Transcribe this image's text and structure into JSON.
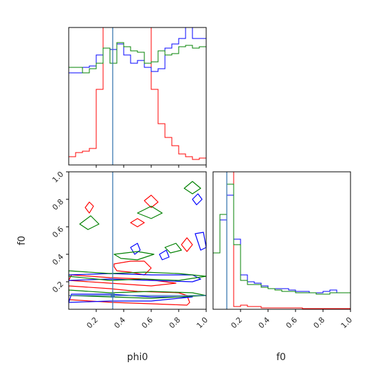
{
  "chart_data": {
    "type": "corner",
    "parameters": [
      "phi0",
      "f0"
    ],
    "truth": {
      "phi0": 0.32,
      "f0": 0.1
    },
    "colors": {
      "truth": "#3b78b0",
      "red": "#ff0000",
      "blue": "#0000ff",
      "green": "#008000"
    },
    "panels": [
      {
        "id": "hist-phi0",
        "type": "histogram",
        "xlim": [
          0,
          1
        ],
        "bin_edges": [
          0,
          0.05,
          0.1,
          0.15,
          0.2,
          0.25,
          0.3,
          0.35,
          0.4,
          0.45,
          0.5,
          0.55,
          0.6,
          0.65,
          0.7,
          0.75,
          0.8,
          0.85,
          0.9,
          0.95,
          1.0
        ],
        "series": [
          {
            "color": "red",
            "values": [
              0.06,
              0.09,
              0.1,
              0.12,
              0.55,
              1.1,
              1.1,
              1.1,
              1.1,
              1.1,
              1.1,
              1.1,
              0.55,
              0.3,
              0.2,
              0.14,
              0.08,
              0.06,
              0.04,
              0.05
            ]
          },
          {
            "color": "blue",
            "values": [
              0.67,
              0.67,
              0.71,
              0.72,
              0.8,
              0.85,
              0.84,
              0.88,
              0.8,
              0.74,
              0.76,
              0.71,
              0.68,
              0.7,
              0.85,
              0.88,
              0.92,
              1.1,
              0.92,
              0.92
            ]
          },
          {
            "color": "green",
            "values": [
              0.71,
              0.71,
              0.67,
              0.7,
              0.74,
              0.85,
              0.74,
              0.89,
              0.86,
              0.83,
              0.82,
              0.74,
              0.75,
              0.83,
              0.8,
              0.81,
              0.86,
              0.87,
              0.85,
              0.86
            ]
          }
        ]
      },
      {
        "id": "hist-f0",
        "type": "histogram",
        "xlim": [
          0,
          1
        ],
        "bin_edges": [
          0,
          0.05,
          0.1,
          0.15,
          0.2,
          0.25,
          0.3,
          0.35,
          0.4,
          0.45,
          0.5,
          0.55,
          0.6,
          0.65,
          0.7,
          0.75,
          0.8,
          0.85,
          0.9,
          0.95,
          1.0
        ],
        "series": [
          {
            "color": "red",
            "values": [
              0.0,
              0.0,
              1.1,
              0.02,
              0.03,
              0.02,
              0.02,
              0.01,
              0.01,
              0.01,
              0.01,
              0.01,
              0.01,
              0.005,
              0.005,
              0.005,
              0.005,
              0.005,
              0.005,
              0.005
            ]
          },
          {
            "color": "blue",
            "values": [
              0.41,
              0.65,
              0.83,
              0.51,
              0.25,
              0.2,
              0.19,
              0.17,
              0.15,
              0.15,
              0.15,
              0.14,
              0.13,
              0.13,
              0.12,
              0.12,
              0.13,
              0.14,
              0.12,
              0.12
            ]
          },
          {
            "color": "green",
            "values": [
              0.41,
              0.69,
              0.91,
              0.47,
              0.21,
              0.18,
              0.18,
              0.16,
              0.15,
              0.14,
              0.13,
              0.13,
              0.12,
              0.12,
              0.12,
              0.11,
              0.11,
              0.12,
              0.12,
              0.12
            ]
          }
        ]
      },
      {
        "id": "contour-phi0-f0",
        "type": "contour",
        "xlabel": "phi0",
        "ylabel": "f0",
        "xlim": [
          0,
          1
        ],
        "ylim": [
          0,
          1
        ],
        "xticks": [
          "0.2",
          "0.4",
          "0.6",
          "0.8",
          "1.0"
        ],
        "yticks": [
          "0.2",
          "0.4",
          "0.6",
          "0.8",
          "1.0"
        ],
        "contours": [
          {
            "color": "red",
            "points": [
              [
                0.0,
                0.17
              ],
              [
                0.3,
                0.15
              ],
              [
                0.5,
                0.13
              ],
              [
                0.8,
                0.12
              ],
              [
                0.86,
                0.1
              ],
              [
                0.88,
                0.05
              ],
              [
                0.86,
                0.03
              ],
              [
                0.6,
                0.04
              ],
              [
                0.32,
                0.05
              ],
              [
                0.0,
                0.07
              ]
            ]
          },
          {
            "color": "red",
            "points": [
              [
                0.33,
                0.33
              ],
              [
                0.45,
                0.35
              ],
              [
                0.55,
                0.35
              ],
              [
                0.6,
                0.3
              ],
              [
                0.55,
                0.25
              ],
              [
                0.45,
                0.27
              ],
              [
                0.35,
                0.28
              ],
              [
                0.33,
                0.31
              ]
            ]
          },
          {
            "color": "red",
            "points": [
              [
                0.12,
                0.74
              ],
              [
                0.15,
                0.78
              ],
              [
                0.18,
                0.75
              ],
              [
                0.15,
                0.7
              ]
            ]
          },
          {
            "color": "red",
            "points": [
              [
                0.45,
                0.63
              ],
              [
                0.5,
                0.66
              ],
              [
                0.55,
                0.63
              ],
              [
                0.5,
                0.6
              ]
            ]
          },
          {
            "color": "red",
            "points": [
              [
                0.55,
                0.79
              ],
              [
                0.6,
                0.83
              ],
              [
                0.65,
                0.78
              ],
              [
                0.6,
                0.74
              ]
            ]
          },
          {
            "color": "red",
            "points": [
              [
                0.82,
                0.47
              ],
              [
                0.86,
                0.52
              ],
              [
                0.9,
                0.47
              ],
              [
                0.86,
                0.42
              ]
            ]
          },
          {
            "color": "red",
            "points": [
              [
                0.02,
                0.25
              ],
              [
                0.3,
                0.23
              ],
              [
                0.55,
                0.22
              ],
              [
                0.78,
                0.19
              ],
              [
                0.6,
                0.17
              ],
              [
                0.3,
                0.19
              ],
              [
                0.0,
                0.21
              ]
            ]
          },
          {
            "color": "blue",
            "points": [
              [
                0.0,
                0.21
              ],
              [
                0.3,
                0.22
              ],
              [
                0.6,
                0.21
              ],
              [
                0.9,
                0.2
              ],
              [
                0.96,
                0.22
              ],
              [
                0.9,
                0.25
              ],
              [
                0.6,
                0.25
              ],
              [
                0.3,
                0.26
              ],
              [
                0.0,
                0.25
              ]
            ]
          },
          {
            "color": "blue",
            "points": [
              [
                0.02,
                0.11
              ],
              [
                0.3,
                0.11
              ],
              [
                0.6,
                0.09
              ],
              [
                0.9,
                0.09
              ],
              [
                0.6,
                0.06
              ],
              [
                0.3,
                0.06
              ],
              [
                0.0,
                0.05
              ]
            ]
          },
          {
            "color": "blue",
            "points": [
              [
                0.45,
                0.45
              ],
              [
                0.5,
                0.48
              ],
              [
                0.52,
                0.43
              ],
              [
                0.48,
                0.4
              ]
            ]
          },
          {
            "color": "blue",
            "points": [
              [
                0.92,
                0.55
              ],
              [
                0.98,
                0.56
              ],
              [
                1.0,
                0.45
              ],
              [
                0.96,
                0.43
              ]
            ]
          },
          {
            "color": "blue",
            "points": [
              [
                0.66,
                0.4
              ],
              [
                0.71,
                0.43
              ],
              [
                0.73,
                0.38
              ],
              [
                0.68,
                0.36
              ]
            ]
          },
          {
            "color": "blue",
            "points": [
              [
                0.9,
                0.8
              ],
              [
                0.94,
                0.84
              ],
              [
                0.97,
                0.8
              ],
              [
                0.93,
                0.76
              ]
            ]
          },
          {
            "color": "green",
            "points": [
              [
                0.0,
                0.28
              ],
              [
                0.3,
                0.26
              ],
              [
                0.55,
                0.27
              ],
              [
                0.8,
                0.26
              ],
              [
                1.0,
                0.24
              ],
              [
                0.8,
                0.21
              ],
              [
                0.55,
                0.22
              ],
              [
                0.3,
                0.21
              ],
              [
                0.0,
                0.24
              ]
            ]
          },
          {
            "color": "green",
            "points": [
              [
                0.0,
                0.14
              ],
              [
                0.3,
                0.12
              ],
              [
                0.6,
                0.13
              ],
              [
                0.9,
                0.12
              ],
              [
                1.0,
                0.1
              ],
              [
                0.6,
                0.08
              ],
              [
                0.3,
                0.09
              ],
              [
                0.0,
                0.1
              ]
            ]
          },
          {
            "color": "green",
            "points": [
              [
                0.33,
                0.4
              ],
              [
                0.5,
                0.42
              ],
              [
                0.62,
                0.4
              ],
              [
                0.5,
                0.36
              ],
              [
                0.38,
                0.37
              ]
            ]
          },
          {
            "color": "green",
            "points": [
              [
                0.08,
                0.62
              ],
              [
                0.16,
                0.68
              ],
              [
                0.22,
                0.62
              ],
              [
                0.14,
                0.58
              ]
            ]
          },
          {
            "color": "green",
            "points": [
              [
                0.5,
                0.7
              ],
              [
                0.6,
                0.75
              ],
              [
                0.68,
                0.7
              ],
              [
                0.6,
                0.66
              ]
            ]
          },
          {
            "color": "green",
            "points": [
              [
                0.84,
                0.88
              ],
              [
                0.9,
                0.93
              ],
              [
                0.96,
                0.88
              ],
              [
                0.9,
                0.84
              ]
            ]
          },
          {
            "color": "green",
            "points": [
              [
                0.7,
                0.45
              ],
              [
                0.78,
                0.48
              ],
              [
                0.82,
                0.43
              ],
              [
                0.74,
                0.41
              ]
            ]
          }
        ]
      }
    ]
  }
}
